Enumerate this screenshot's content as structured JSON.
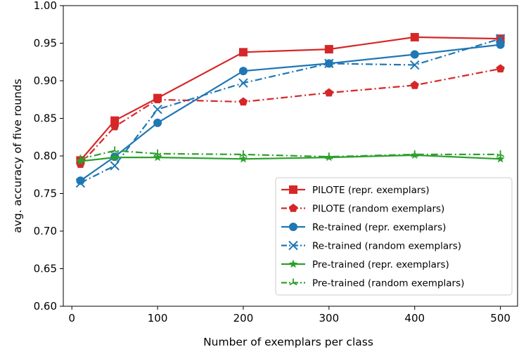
{
  "chart_data": {
    "type": "line",
    "xlabel": "Number of exemplars per class",
    "ylabel": "avg. accuracy of five rounds",
    "xlim": [
      -10,
      520
    ],
    "ylim": [
      0.6,
      1.0
    ],
    "x": [
      10,
      50,
      100,
      200,
      300,
      400,
      500
    ],
    "x_ticks": [
      0,
      100,
      200,
      300,
      400,
      500
    ],
    "x_tick_labels": [
      "0",
      "100",
      "200",
      "300",
      "400",
      "500"
    ],
    "y_ticks": [
      0.6,
      0.65,
      0.7,
      0.75,
      0.8,
      0.85,
      0.9,
      0.95,
      1.0
    ],
    "y_tick_labels": [
      "0.60",
      "0.65",
      "0.70",
      "0.75",
      "0.80",
      "0.85",
      "0.90",
      "0.95",
      "1.00"
    ],
    "grid": false,
    "legend_position": "lower-right",
    "series": [
      {
        "name": "PILOTE (repr. exemplars)",
        "values": [
          0.794,
          0.847,
          0.877,
          0.938,
          0.942,
          0.958,
          0.956
        ],
        "color": "#d62728",
        "line": "solid",
        "marker": "square"
      },
      {
        "name": "PILOTE (random exemplars)",
        "values": [
          0.789,
          0.839,
          0.875,
          0.872,
          0.884,
          0.894,
          0.916
        ],
        "color": "#d62728",
        "line": "dashdot",
        "marker": "pentagon"
      },
      {
        "name": "Re-trained (repr. exemplars)",
        "values": [
          0.767,
          0.799,
          0.844,
          0.913,
          0.923,
          0.935,
          0.948
        ],
        "color": "#1f77b4",
        "line": "solid",
        "marker": "circle"
      },
      {
        "name": "Re-trained (random exemplars)",
        "values": [
          0.764,
          0.787,
          0.862,
          0.897,
          0.923,
          0.921,
          0.956
        ],
        "color": "#1f77b4",
        "line": "dashdot",
        "marker": "x"
      },
      {
        "name": "Pre-trained (repr. exemplars)",
        "values": [
          0.793,
          0.798,
          0.798,
          0.796,
          0.798,
          0.801,
          0.796
        ],
        "color": "#2ca02c",
        "line": "solid",
        "marker": "star"
      },
      {
        "name": "Pre-trained (random exemplars)",
        "values": [
          0.796,
          0.807,
          0.803,
          0.802,
          0.799,
          0.802,
          0.802
        ],
        "color": "#2ca02c",
        "line": "dashdot",
        "marker": "tri"
      }
    ]
  }
}
